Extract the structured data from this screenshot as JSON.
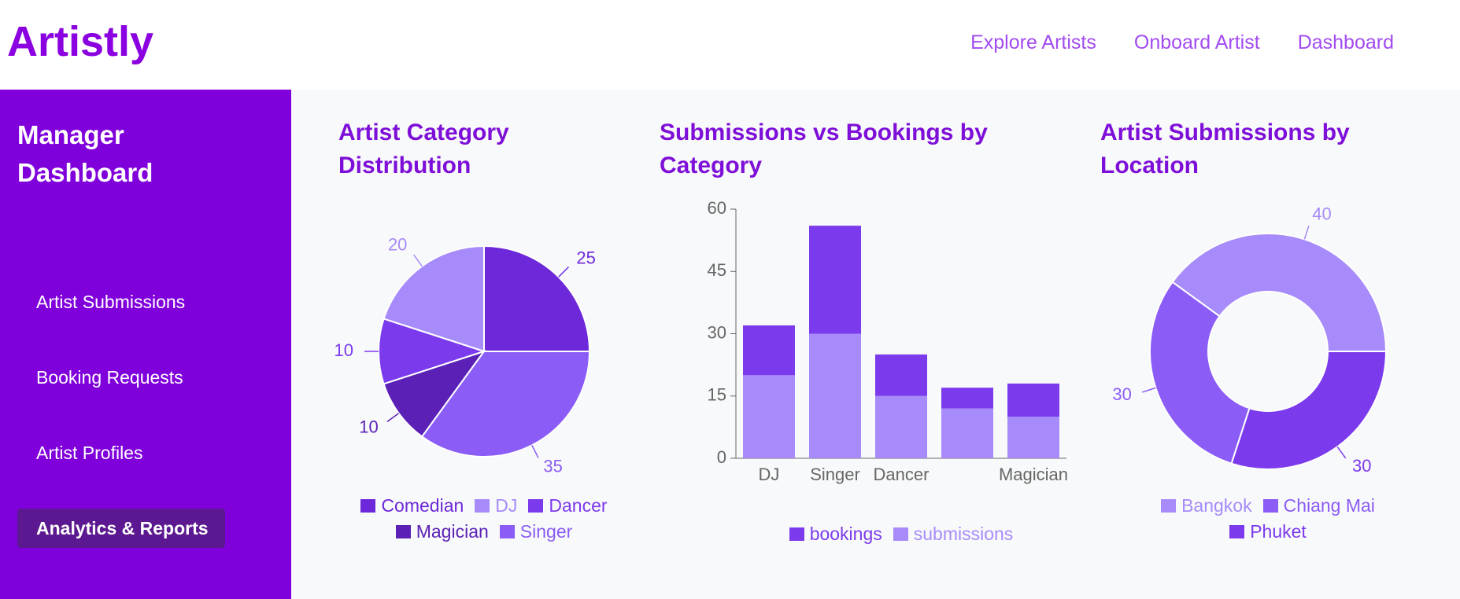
{
  "header": {
    "logo": "Artistly",
    "nav": [
      "Explore Artists",
      "Onboard Artist",
      "Dashboard"
    ]
  },
  "sidebar": {
    "title": "Manager Dashboard",
    "items": [
      "Artist Submissions",
      "Booking Requests",
      "Artist Profiles",
      "Analytics & Reports"
    ],
    "active": 3
  },
  "chart_data": [
    {
      "type": "pie",
      "title": "Artist Category Distribution",
      "categories": [
        "Comedian",
        "DJ",
        "Dancer",
        "Magician",
        "Singer"
      ],
      "values": [
        25,
        20,
        10,
        10,
        35
      ],
      "colors": [
        "#6d28d9",
        "#a78bfa",
        "#7c3aed",
        "#5b21b6",
        "#8b5cf6"
      ]
    },
    {
      "type": "bar",
      "stacked": true,
      "title": "Submissions vs Bookings by Category",
      "categories": [
        "DJ",
        "Singer",
        "Dancer",
        null,
        "Magician"
      ],
      "series": [
        {
          "name": "bookings",
          "color": "#7c3aed",
          "values": [
            12,
            26,
            10,
            5,
            8
          ]
        },
        {
          "name": "submissions",
          "color": "#a78bfa",
          "values": [
            20,
            30,
            15,
            12,
            10
          ]
        }
      ],
      "ylim": [
        0,
        60
      ],
      "yticks": [
        0,
        15,
        30,
        45,
        60
      ]
    },
    {
      "type": "donut",
      "title": "Artist Submissions by Location",
      "categories": [
        "Bangkok",
        "Chiang Mai",
        "Phuket"
      ],
      "values": [
        40,
        30,
        30
      ],
      "colors": [
        "#a78bfa",
        "#8b5cf6",
        "#7c3aed"
      ]
    }
  ]
}
